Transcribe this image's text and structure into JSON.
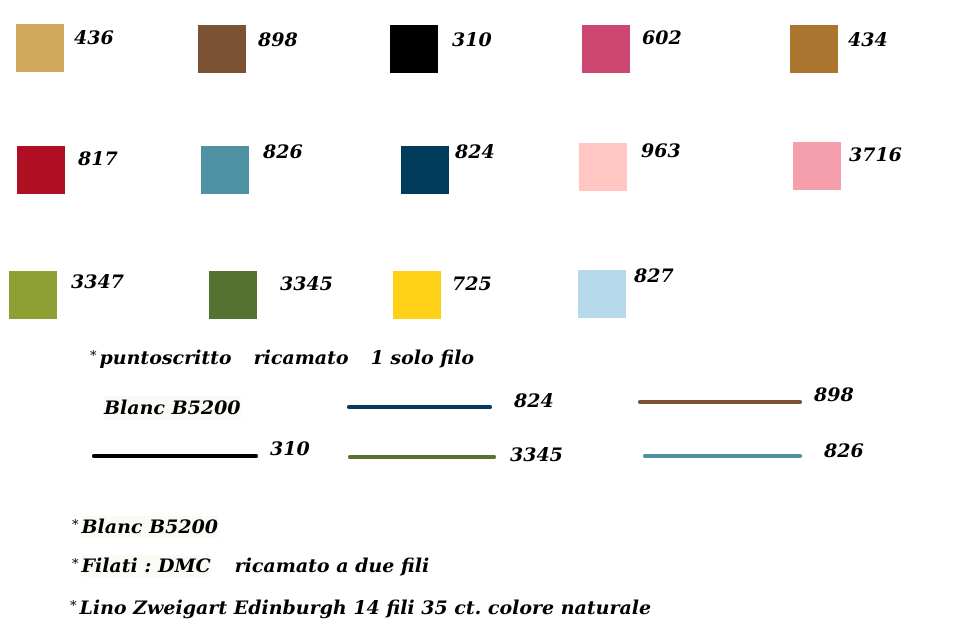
{
  "swatches": [
    {
      "code": "436",
      "color": "#D2A85C"
    },
    {
      "code": "898",
      "color": "#7B5233"
    },
    {
      "code": "310",
      "color": "#000000"
    },
    {
      "code": "602",
      "color": "#CC476F"
    },
    {
      "code": "434",
      "color": "#AA762F"
    },
    {
      "code": "817",
      "color": "#B00E22"
    },
    {
      "code": "826",
      "color": "#4E92A4"
    },
    {
      "code": "824",
      "color": "#003B5B"
    },
    {
      "code": "963",
      "color": "#FFC6C2"
    },
    {
      "code": "3716",
      "color": "#F59EAC"
    },
    {
      "code": "3347",
      "color": "#8E9F34"
    },
    {
      "code": "3345",
      "color": "#557330"
    },
    {
      "code": "725",
      "color": "#FDD115"
    },
    {
      "code": "827",
      "color": "#B5D8EB"
    }
  ],
  "backstitch": {
    "star": "*",
    "word1": "puntoscritto",
    "word2": "ricamato",
    "word3": "1 solo filo",
    "blanc_label": "Blanc B5200",
    "lines": [
      {
        "code": "824",
        "color": "#003B5B"
      },
      {
        "code": "898",
        "color": "#7B5233"
      },
      {
        "code": "310",
        "color": "#000000"
      },
      {
        "code": "3345",
        "color": "#557330"
      },
      {
        "code": "826",
        "color": "#4E92A4"
      }
    ]
  },
  "notes": {
    "star": "*",
    "blanc": "Blanc B5200",
    "filati": "Filati : DMC",
    "filati_suffix": "ricamato a due fili",
    "lino": "Lino Zweigart  Edinburgh  14 fili 35 ct. colore  naturale"
  }
}
